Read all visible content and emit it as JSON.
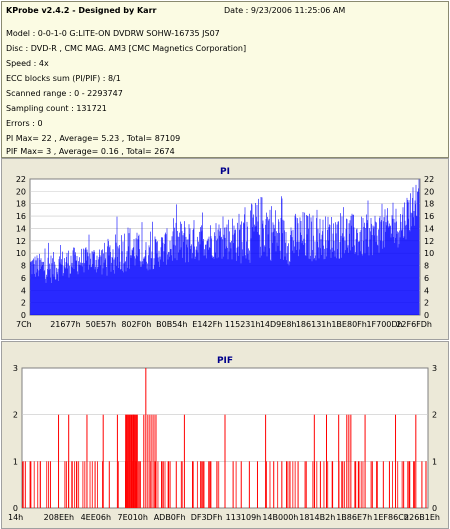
{
  "header": {
    "app_title": "KProbe v2.4.2 - Designed by Karr",
    "date_label": "Date : 9/23/2006 11:25:06 AM",
    "lines": [
      "Model : 0-0-1-0 G:LITE-ON DVDRW SOHW-16735 JS07",
      "Disc : DVD-R , CMC MAG. AM3 [CMC Magnetics Corporation]",
      "Speed : 4x",
      "ECC blocks sum (PI/PIF) : 8/1",
      "Scanned range : 0 - 2293747",
      "Sampling count : 131721",
      "Errors : 0",
      "PI Max= 22 , Average= 5.23 , Total= 87109",
      "PIF Max= 3 , Average= 0.16 , Total= 2674"
    ]
  },
  "colors": {
    "pi_bars": "#0000ff",
    "pif_bars": "#ff0000",
    "plot_bg": "#ffffff",
    "panel_bg": "#ece9d8",
    "title": "#00008b"
  },
  "chart_data": [
    {
      "type": "bar",
      "title": "PI",
      "ylim": [
        0,
        22
      ],
      "yticks": [
        0,
        2,
        4,
        6,
        8,
        10,
        12,
        14,
        16,
        18,
        20,
        22
      ],
      "xticks": [
        "7Ch",
        "21677h",
        "50E57h",
        "802F0h",
        "B0B54h",
        "E142Fh",
        "115231h",
        "14D9E8h",
        "186131h",
        "1BE80Fh",
        "1F700Dh",
        "22F6FDh"
      ],
      "grid": true,
      "max": 22,
      "average": 5.23,
      "profile": [
        [
          0,
          6,
          10
        ],
        [
          0.05,
          5,
          10
        ],
        [
          0.1,
          6,
          11
        ],
        [
          0.15,
          7,
          11
        ],
        [
          0.2,
          6,
          12
        ],
        [
          0.25,
          7,
          15
        ],
        [
          0.3,
          7,
          12
        ],
        [
          0.35,
          8,
          14
        ],
        [
          0.4,
          8,
          16
        ],
        [
          0.45,
          9,
          15
        ],
        [
          0.5,
          9,
          16
        ],
        [
          0.55,
          8,
          17
        ],
        [
          0.6,
          9,
          20
        ],
        [
          0.65,
          8,
          16
        ],
        [
          0.7,
          8,
          17
        ],
        [
          0.75,
          9,
          16
        ],
        [
          0.8,
          9,
          17
        ],
        [
          0.85,
          9,
          16
        ],
        [
          0.9,
          10,
          17
        ],
        [
          0.95,
          11,
          18
        ],
        [
          0.985,
          14,
          22
        ],
        [
          1.0,
          16,
          22
        ]
      ]
    },
    {
      "type": "bar",
      "title": "PIF",
      "ylim": [
        0,
        3
      ],
      "yticks": [
        0,
        1,
        2,
        3
      ],
      "xticks": [
        "14h",
        "208EEh",
        "4EE06h",
        "7E010h",
        "ADB0Fh",
        "DF3DFh",
        "113109h",
        "14B000h",
        "1814B2h",
        "1B86E7h",
        "1EF86Ch",
        "226B1Eh"
      ],
      "grid": true,
      "max": 3,
      "average": 0.16,
      "points": [
        [
          0.02,
          1
        ],
        [
          0.045,
          1
        ],
        [
          0.07,
          1
        ],
        [
          0.09,
          2
        ],
        [
          0.115,
          2
        ],
        [
          0.135,
          1
        ],
        [
          0.16,
          2
        ],
        [
          0.18,
          1
        ],
        [
          0.2,
          2
        ],
        [
          0.215,
          1
        ],
        [
          0.235,
          2
        ],
        [
          0.255,
          1
        ],
        [
          0.275,
          2
        ],
        [
          0.29,
          1
        ],
        [
          0.3,
          2
        ],
        [
          0.305,
          3
        ],
        [
          0.31,
          2
        ],
        [
          0.315,
          2
        ],
        [
          0.32,
          2
        ],
        [
          0.325,
          2
        ],
        [
          0.33,
          2
        ],
        [
          0.345,
          1
        ],
        [
          0.36,
          1
        ],
        [
          0.38,
          1
        ],
        [
          0.4,
          2
        ],
        [
          0.42,
          1
        ],
        [
          0.44,
          1
        ],
        [
          0.46,
          1
        ],
        [
          0.48,
          1
        ],
        [
          0.5,
          2
        ],
        [
          0.52,
          1
        ],
        [
          0.54,
          1
        ],
        [
          0.56,
          1
        ],
        [
          0.58,
          1
        ],
        [
          0.6,
          2
        ],
        [
          0.62,
          1
        ],
        [
          0.64,
          1
        ],
        [
          0.66,
          1
        ],
        [
          0.68,
          1
        ],
        [
          0.7,
          1
        ],
        [
          0.72,
          2
        ],
        [
          0.735,
          1
        ],
        [
          0.75,
          2
        ],
        [
          0.765,
          1
        ],
        [
          0.78,
          2
        ],
        [
          0.79,
          1
        ],
        [
          0.8,
          2
        ],
        [
          0.805,
          2
        ],
        [
          0.81,
          2
        ],
        [
          0.82,
          1
        ],
        [
          0.83,
          1
        ],
        [
          0.845,
          2
        ],
        [
          0.86,
          1
        ],
        [
          0.875,
          1
        ],
        [
          0.89,
          1
        ],
        [
          0.905,
          1
        ],
        [
          0.92,
          2
        ],
        [
          0.94,
          1
        ],
        [
          0.955,
          1
        ],
        [
          0.97,
          2
        ],
        [
          0.985,
          1
        ],
        [
          0.995,
          1
        ]
      ]
    }
  ]
}
